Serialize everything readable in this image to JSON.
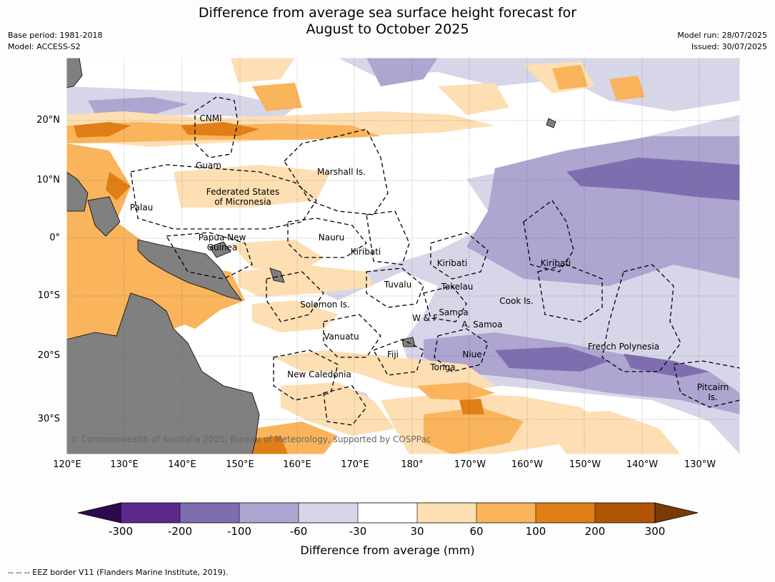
{
  "title": "Difference from average sea surface height forecast for\nAugust to October 2025",
  "meta_left": [
    "Base period: 1981-2018",
    "Model: ACCESS-S2"
  ],
  "meta_right": [
    "Model run: 28/07/2025",
    "Issued: 30/07/2025"
  ],
  "lat_labels": [
    "20°N",
    "10°N",
    "0°",
    "10°S",
    "20°S",
    "30°S"
  ],
  "lon_labels": [
    "120°E",
    "130°E",
    "140°E",
    "150°E",
    "160°E",
    "170°E",
    "180°",
    "170°W",
    "160°W",
    "150°W",
    "140°W",
    "130°W"
  ],
  "regions": [
    "CNMI",
    "Guam",
    "Marshall Is.",
    "Federated States\nof Micronesia",
    "Palau",
    "Papua New\nGuinea",
    "Nauru",
    "Kiribati",
    "Kiribati",
    "Kiribati",
    "Tuvalu",
    "Tokelau",
    "Solomon Is.",
    "Cook Is.",
    "Samoa",
    "W & F",
    "A. Samoa",
    "Vanuatu",
    "Fiji",
    "Niue",
    "French Polynesia",
    "Tonga",
    "New Caledonia",
    "Pitcairn\nIs."
  ],
  "copyright": "© Commonwealth of Australia 2025, Bureau of Meteorology, supported by COSPPac",
  "colorbar": {
    "ticks": [
      "-300",
      "-200",
      "-100",
      "-60",
      "-30",
      "30",
      "60",
      "100",
      "200",
      "300"
    ],
    "colors": [
      "#2d0a4e",
      "#5b2a8c",
      "#7f6eaf",
      "#aea5d0",
      "#d7d6e9",
      "#ffffff",
      "#fddfb3",
      "#f9b45c",
      "#e07f16",
      "#b05506",
      "#7a3a05"
    ],
    "label": "Difference from average (mm)"
  },
  "footnote": "--  --  -- EEZ border V11 (Flanders Marine Institute, 2019)."
}
